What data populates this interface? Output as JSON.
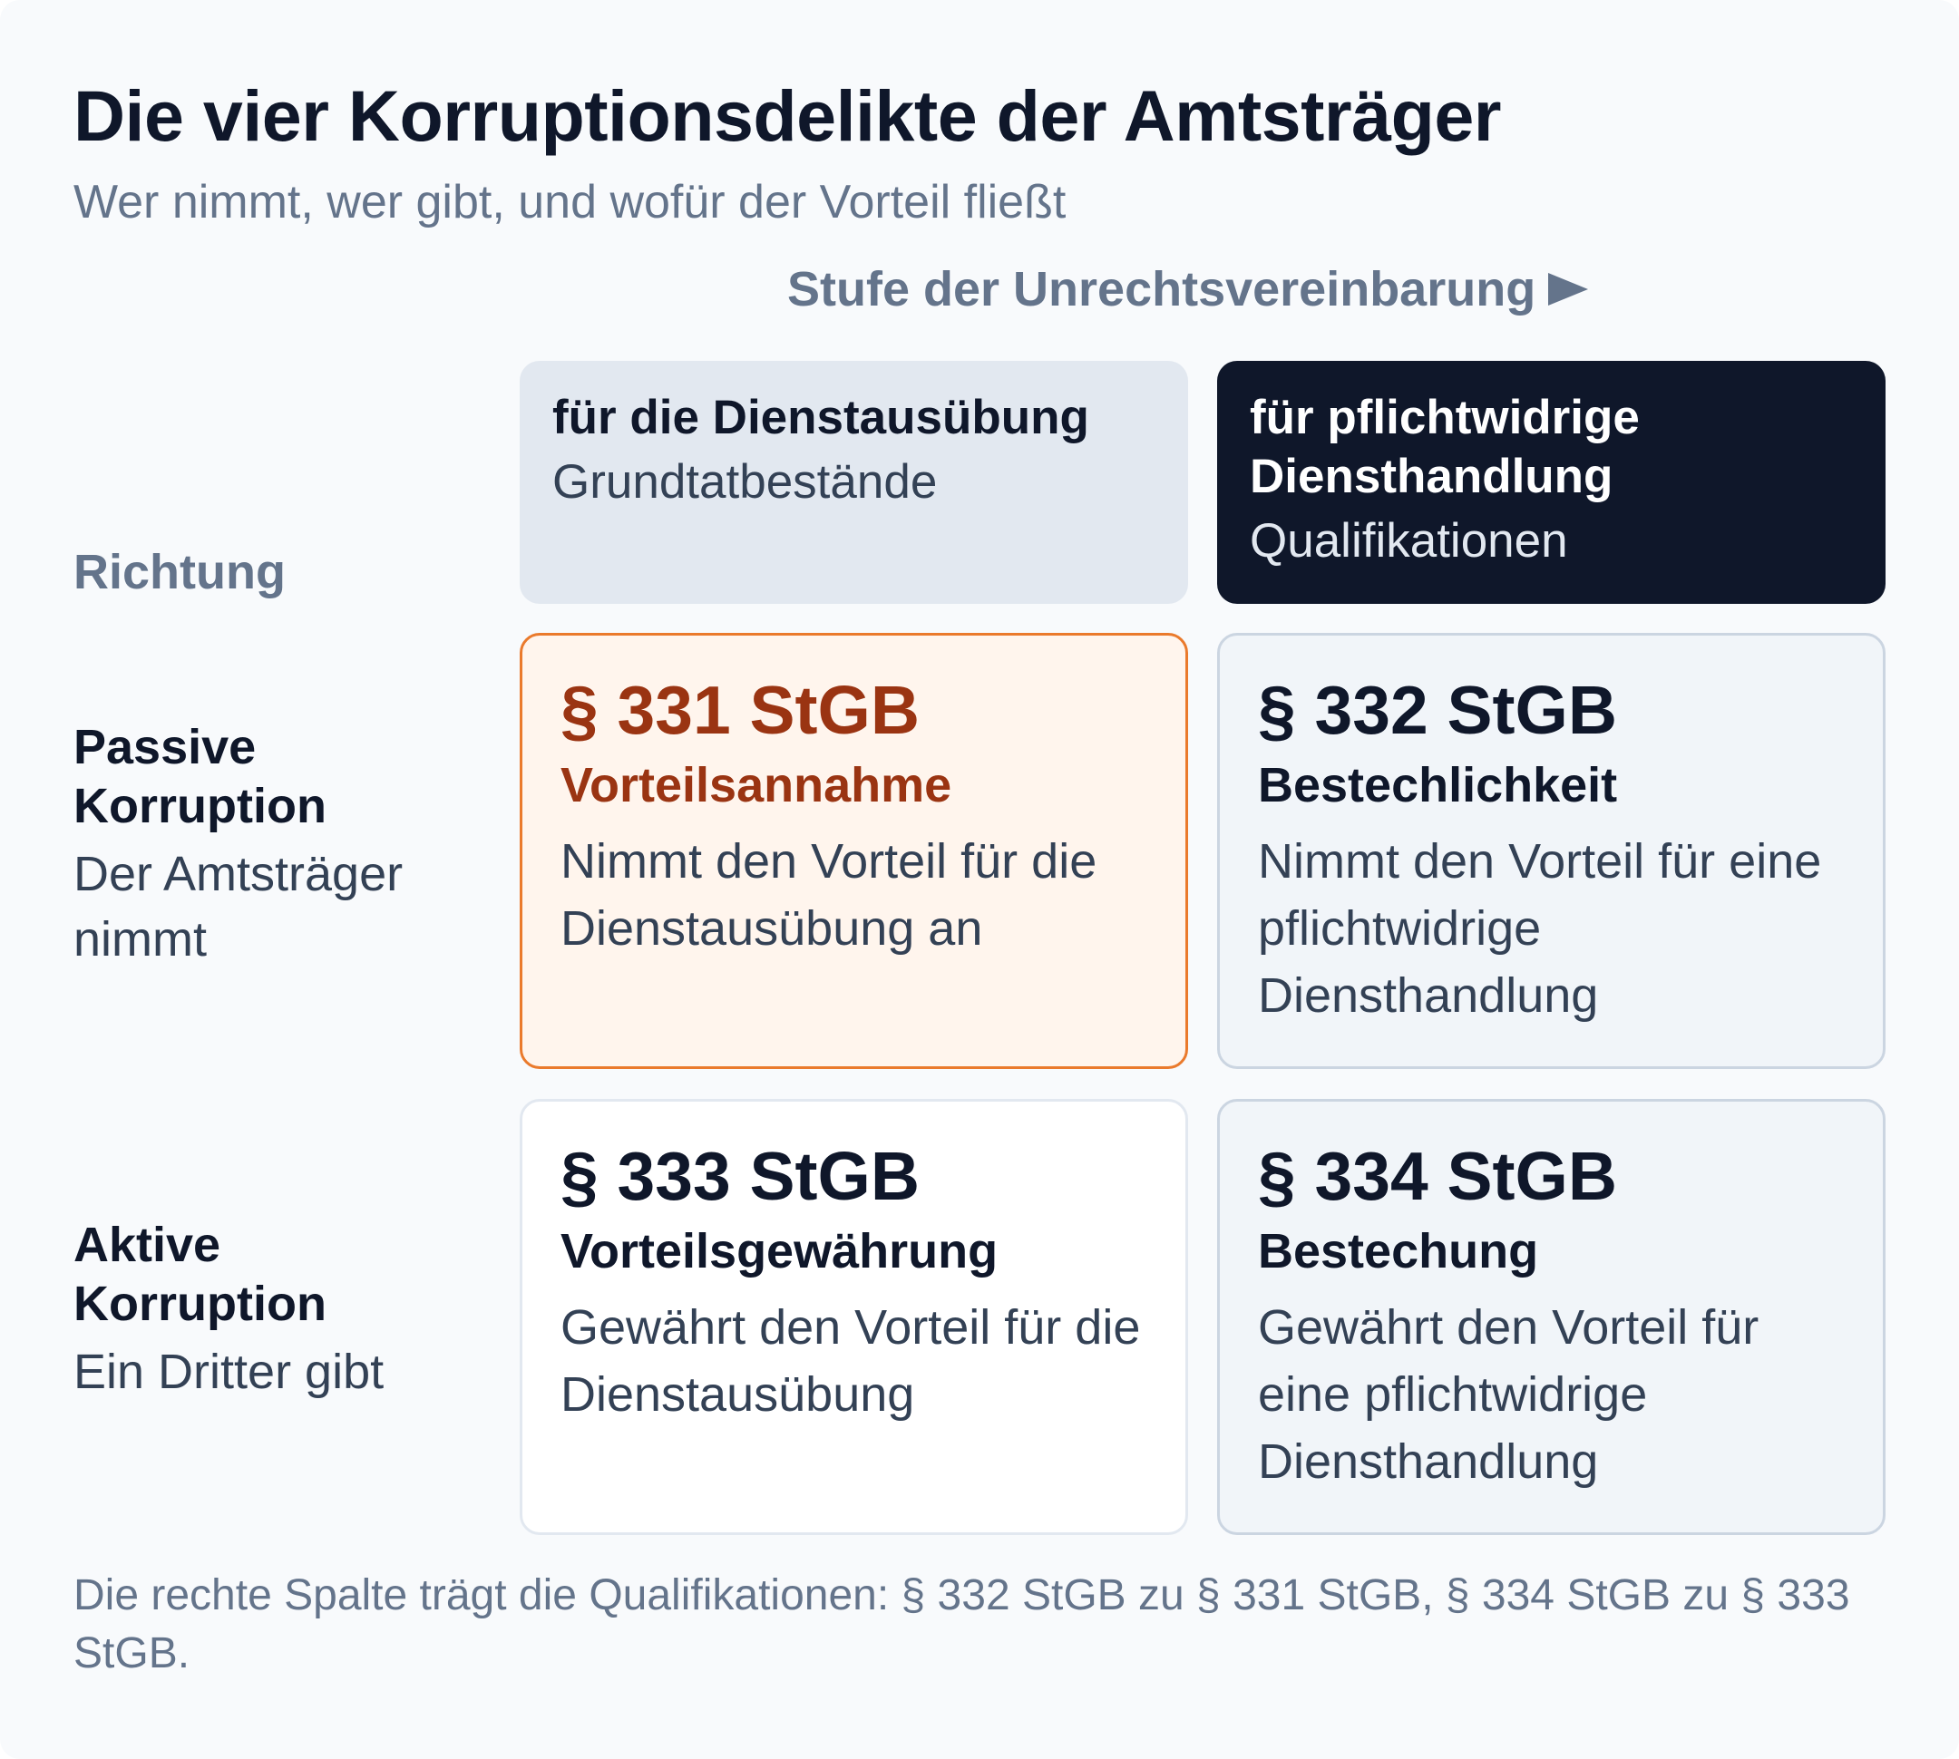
{
  "header": {
    "title": "Die vier Korruptionsdelikte der Amtsträger",
    "subtitle": "Wer nimmt, wer gibt, und wofür der Vorteil fließt"
  },
  "axes": {
    "column_axis_label": "Stufe der Unrechtsvereinbarung",
    "column_axis_icon": "arrow-right-icon",
    "row_axis_label": "Richtung"
  },
  "columns": [
    {
      "title": "für die Dienstausübung",
      "subtitle": "Grundtatbestände"
    },
    {
      "title": "für pflichtwidrige Diensthandlung",
      "subtitle": "Qualifikationen"
    }
  ],
  "rows": [
    {
      "title": "Passive Korruption",
      "subtitle": "Der Amtsträger nimmt"
    },
    {
      "title": "Aktive Korruption",
      "subtitle": "Ein Dritter gibt"
    }
  ],
  "cells": [
    [
      {
        "paragraph": "§ 331 StGB",
        "name": "Vorteilsannahme",
        "description": "Nimmt den Vorteil für die Dienstausübung an"
      },
      {
        "paragraph": "§ 332 StGB",
        "name": "Bestechlichkeit",
        "description": "Nimmt den Vorteil für eine pflichtwidrige Diensthandlung"
      }
    ],
    [
      {
        "paragraph": "§ 333 StGB",
        "name": "Vorteilsgewährung",
        "description": "Gewährt den Vorteil für die Dienstausübung"
      },
      {
        "paragraph": "§ 334 StGB",
        "name": "Bestechung",
        "description": "Gewährt den Vorteil für eine pflichtwidrige Diensthandlung"
      }
    ]
  ],
  "footnote": "Die rechte Spalte trägt die Qualifikationen: § 332 StGB zu § 331 StGB, § 334 StGB zu § 333 StGB.",
  "colors": {
    "highlight_accent": "#ea7a2c",
    "highlight_text": "#9a3412",
    "dark_header": "#0f172a",
    "muted_text": "#64748b"
  }
}
